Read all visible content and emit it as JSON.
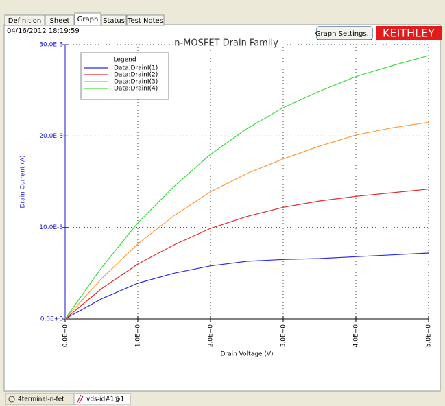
{
  "tabs": [
    "Definition",
    "Sheet",
    "Graph",
    "Status",
    "Test Notes"
  ],
  "timestamp": "04/16/2012 18:19:59",
  "button": "Graph Settings...",
  "logo": "KEITHLEY",
  "bottom_tabs": [
    "4terminal-n-fet",
    "vds-id#1@1"
  ],
  "chart_data": {
    "type": "line",
    "title": "n-MOSFET Drain Family",
    "x_label": "Drain Voltage (V)",
    "y_label": "Drain Current (A)",
    "legend_title": "Legend",
    "x": [
      0,
      0.5,
      1,
      1.5,
      2,
      2.5,
      3,
      3.5,
      4,
      4.5,
      5
    ],
    "series": [
      {
        "name": "Data:DrainI(1)",
        "color": "#2a2ae6",
        "values": [
          0,
          0.0022,
          0.0039,
          0.005,
          0.0058,
          0.0063,
          0.0065,
          0.0066,
          0.0068,
          0.007,
          0.0072
        ]
      },
      {
        "name": "Data:DrainI(2)",
        "color": "#e62a2a",
        "values": [
          0,
          0.0033,
          0.006,
          0.0081,
          0.0099,
          0.0112,
          0.0122,
          0.0129,
          0.0134,
          0.0138,
          0.0142
        ]
      },
      {
        "name": "Data:DrainI(3)",
        "color": "#ff9a3c",
        "values": [
          0,
          0.0044,
          0.0082,
          0.0113,
          0.0139,
          0.0159,
          0.0175,
          0.0189,
          0.0201,
          0.0209,
          0.0215
        ]
      },
      {
        "name": "Data:DrainI(4)",
        "color": "#3ade3a",
        "values": [
          0,
          0.0056,
          0.0105,
          0.0145,
          0.018,
          0.0208,
          0.0231,
          0.0249,
          0.0265,
          0.0277,
          0.0288
        ]
      }
    ],
    "xlim": [
      0,
      5
    ],
    "ylim": [
      0,
      0.03
    ],
    "xticks": [
      {
        "value": 0,
        "label": "0.0E+0"
      },
      {
        "value": 1,
        "label": "1.0E+0"
      },
      {
        "value": 2,
        "label": "2.0E+0"
      },
      {
        "value": 3,
        "label": "3.0E+0"
      },
      {
        "value": 4,
        "label": "4.0E+0"
      },
      {
        "value": 5,
        "label": "5.0E+0"
      }
    ],
    "yticks": [
      {
        "value": 0,
        "label": "0.0E+0"
      },
      {
        "value": 0.01,
        "label": "10.0E-3"
      },
      {
        "value": 0.02,
        "label": "20.0E-3"
      },
      {
        "value": 0.03,
        "label": "30.0E-3"
      }
    ],
    "grid": true
  }
}
